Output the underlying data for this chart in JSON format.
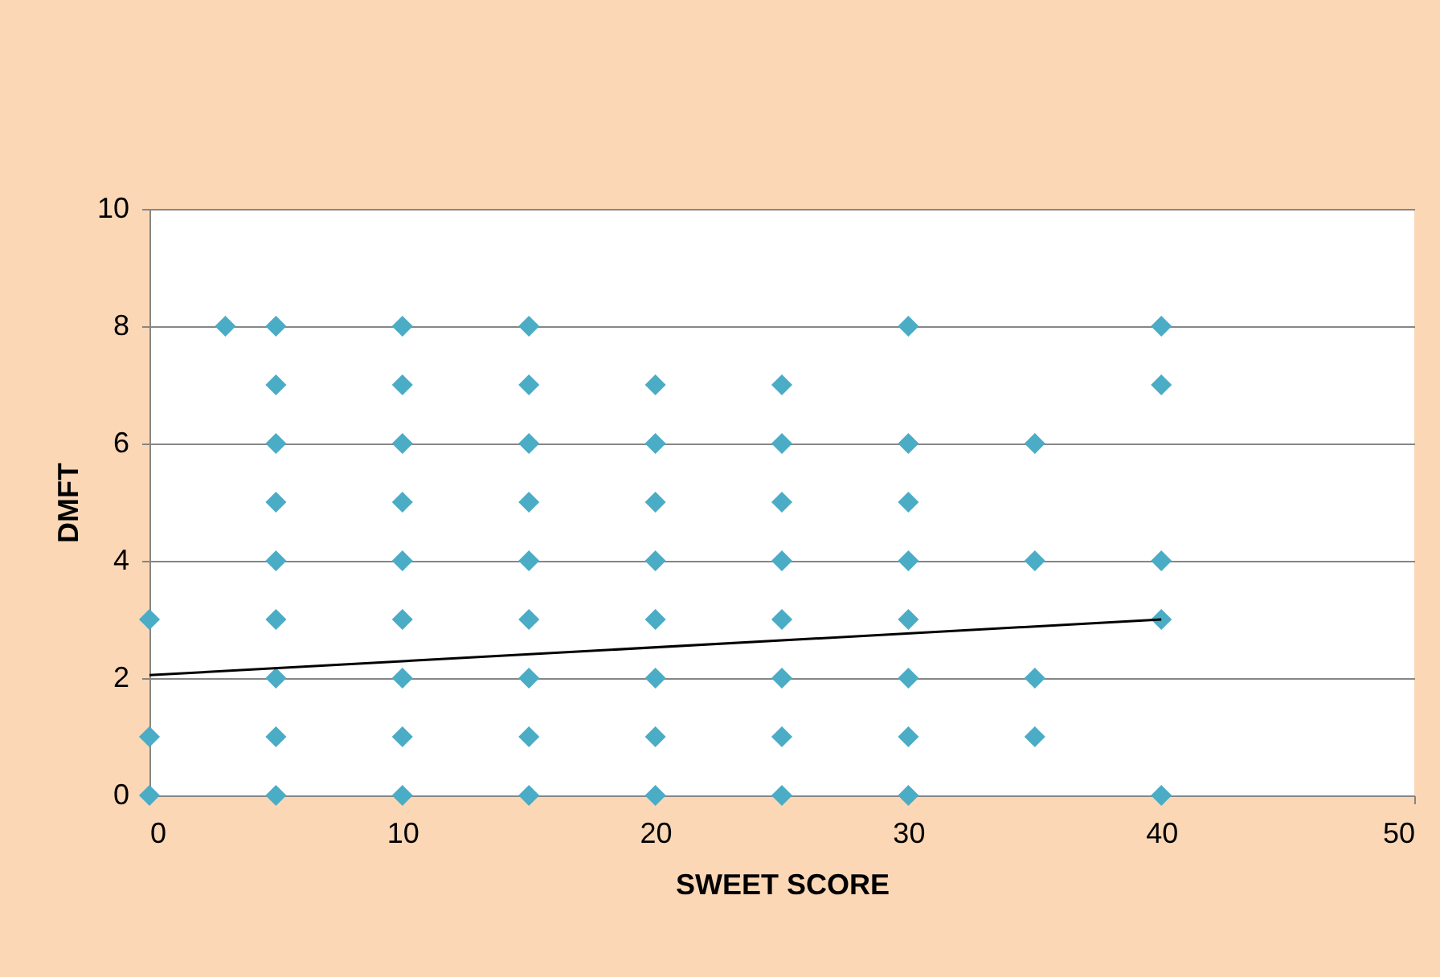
{
  "chart_data": {
    "type": "scatter",
    "xlabel": "SWEET SCORE",
    "ylabel": "DMFT",
    "xlim": [
      0,
      50
    ],
    "xticks": [
      0,
      10,
      20,
      30,
      40,
      50
    ],
    "ylim": [
      0,
      10
    ],
    "yticks": [
      0,
      2,
      4,
      6,
      8,
      10
    ],
    "grid": "y",
    "series": [
      {
        "color": "#4bacc6",
        "marker": "diamond",
        "x": [
          0,
          0,
          0,
          3,
          5,
          5,
          5,
          5,
          5,
          5,
          5,
          5,
          5,
          10,
          10,
          10,
          10,
          10,
          10,
          10,
          10,
          10,
          15,
          15,
          15,
          15,
          15,
          15,
          15,
          15,
          15,
          20,
          20,
          20,
          20,
          20,
          20,
          20,
          20,
          25,
          25,
          25,
          25,
          25,
          25,
          25,
          25,
          30,
          30,
          30,
          30,
          30,
          30,
          30,
          30,
          35,
          35,
          35,
          35,
          40,
          40,
          40,
          40,
          40
        ],
        "values": [
          0,
          1,
          3,
          8,
          0,
          1,
          2,
          3,
          4,
          5,
          6,
          7,
          8,
          0,
          1,
          2,
          3,
          4,
          5,
          6,
          7,
          8,
          0,
          1,
          2,
          3,
          4,
          5,
          6,
          7,
          8,
          0,
          1,
          2,
          3,
          4,
          5,
          6,
          7,
          0,
          1,
          2,
          3,
          4,
          5,
          6,
          7,
          0,
          1,
          2,
          3,
          4,
          5,
          6,
          8,
          1,
          2,
          4,
          6,
          0,
          3,
          4,
          7,
          8
        ]
      },
      {
        "type": "line",
        "color": "#000000",
        "marker": "none",
        "x": [
          0,
          40
        ],
        "values": [
          2.05,
          3.0
        ]
      }
    ]
  }
}
